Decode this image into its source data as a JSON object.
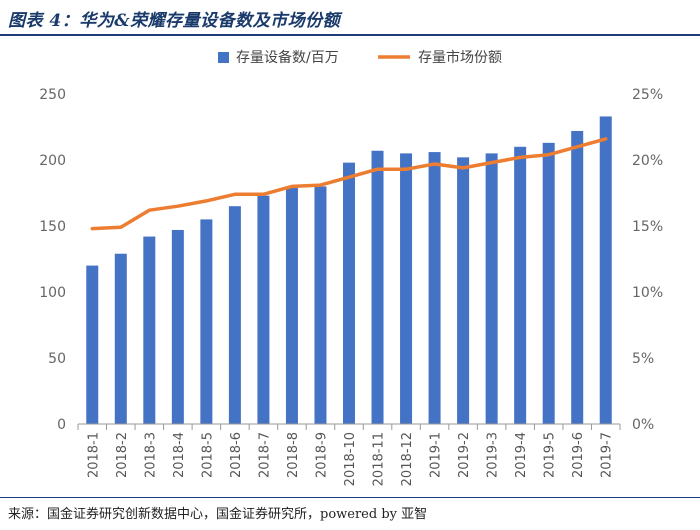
{
  "figure": {
    "title": "图表 4：华为&荣耀存量设备数及市场份额",
    "source": "来源：国金证券研究创新数据中心，国金证券研究所，powered by 亚智"
  },
  "colors": {
    "bar": "#4472C4",
    "line": "#ED7D31",
    "axis": "#999999",
    "tick": "#666666"
  },
  "chart_data": {
    "type": "bar",
    "categories": [
      "2018-1",
      "2018-2",
      "2018-3",
      "2018-4",
      "2018-5",
      "2018-6",
      "2018-7",
      "2018-8",
      "2018-9",
      "2018-10",
      "2018-11",
      "2018-12",
      "2019-1",
      "2019-2",
      "2019-3",
      "2019-4",
      "2019-5",
      "2019-6",
      "2019-7"
    ],
    "series": [
      {
        "name": "存量设备数/百万",
        "type": "bar",
        "axis": "left",
        "values": [
          120,
          129,
          142,
          147,
          155,
          165,
          173,
          179,
          180,
          198,
          207,
          205,
          206,
          202,
          205,
          210,
          213,
          222,
          233
        ]
      },
      {
        "name": "存量市场份额",
        "type": "line",
        "axis": "right",
        "values": [
          14.8,
          14.9,
          16.2,
          16.5,
          16.9,
          17.4,
          17.4,
          18.0,
          18.1,
          18.7,
          19.3,
          19.3,
          19.7,
          19.4,
          19.8,
          20.2,
          20.4,
          21.0,
          21.6
        ]
      }
    ],
    "ylim": [
      0,
      250
    ],
    "yticks": [
      "0",
      "50",
      "100",
      "150",
      "200",
      "250"
    ],
    "y2lim": [
      0,
      25
    ],
    "y2ticks": [
      "0%",
      "5%",
      "10%",
      "15%",
      "20%",
      "25%"
    ],
    "grid": false,
    "legend": "top-center"
  }
}
